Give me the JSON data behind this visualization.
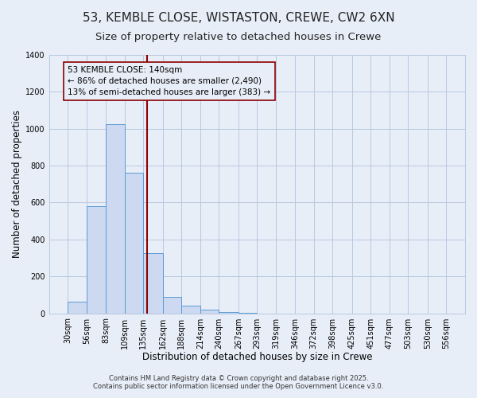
{
  "title": "53, KEMBLE CLOSE, WISTASTON, CREWE, CW2 6XN",
  "subtitle": "Size of property relative to detached houses in Crewe",
  "xlabel": "Distribution of detached houses by size in Crewe",
  "ylabel": "Number of detached properties",
  "bin_labels": [
    "30sqm",
    "56sqm",
    "83sqm",
    "109sqm",
    "135sqm",
    "162sqm",
    "188sqm",
    "214sqm",
    "240sqm",
    "267sqm",
    "293sqm",
    "319sqm",
    "346sqm",
    "372sqm",
    "398sqm",
    "425sqm",
    "451sqm",
    "477sqm",
    "503sqm",
    "530sqm",
    "556sqm"
  ],
  "bin_edges": [
    30,
    56,
    83,
    109,
    135,
    162,
    188,
    214,
    240,
    267,
    293,
    319,
    346,
    372,
    398,
    425,
    451,
    477,
    503,
    530,
    556
  ],
  "bar_heights": [
    65,
    580,
    1025,
    760,
    325,
    90,
    40,
    20,
    5,
    2,
    0,
    0,
    0,
    0,
    0,
    0,
    0,
    0,
    0,
    0
  ],
  "bar_color": "#ccd9f0",
  "bar_edgecolor": "#5b9bd5",
  "vline_x": 140,
  "vline_color": "#8b0000",
  "annotation_title": "53 KEMBLE CLOSE: 140sqm",
  "annotation_line1": "← 86% of detached houses are smaller (2,490)",
  "annotation_line2": "13% of semi-detached houses are larger (383) →",
  "annotation_box_edgecolor": "#8b0000",
  "ylim": [
    0,
    1400
  ],
  "yticks": [
    0,
    200,
    400,
    600,
    800,
    1000,
    1200,
    1400
  ],
  "background_color": "#e8eef8",
  "grid_color": "#b8c8e0",
  "footer_line1": "Contains HM Land Registry data © Crown copyright and database right 2025.",
  "footer_line2": "Contains public sector information licensed under the Open Government Licence v3.0.",
  "title_fontsize": 11,
  "subtitle_fontsize": 9.5,
  "axis_label_fontsize": 8.5,
  "tick_fontsize": 7,
  "annotation_fontsize": 7.5,
  "footer_fontsize": 6
}
